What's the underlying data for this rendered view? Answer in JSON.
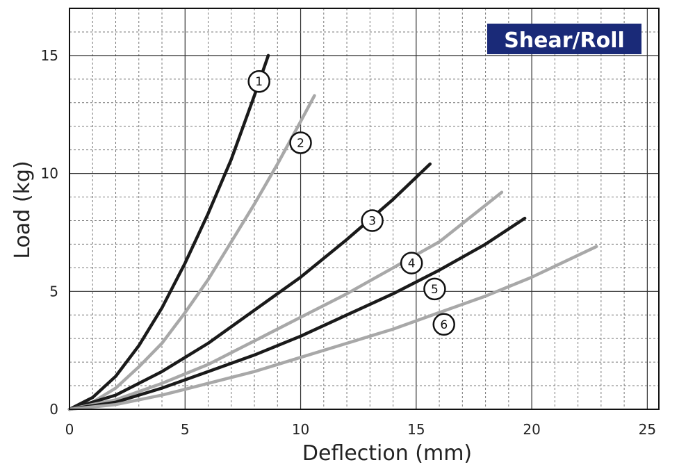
{
  "chart_data": {
    "type": "line",
    "title": "Shear/Roll",
    "xlabel": "Deflection (mm)",
    "ylabel": "Load (kg)",
    "xlim": [
      0,
      25.5
    ],
    "ylim": [
      0,
      17
    ],
    "xticks": [
      "0",
      "5",
      "10",
      "15",
      "20",
      "25"
    ],
    "yticks": [
      "0",
      "5",
      "10",
      "15"
    ],
    "grid": true,
    "series": [
      {
        "name": "1",
        "color": "#1a1a1a",
        "x": [
          0,
          1,
          2,
          3,
          4,
          5,
          6,
          7,
          8,
          8.6
        ],
        "y": [
          0,
          0.5,
          1.4,
          2.7,
          4.3,
          6.2,
          8.3,
          10.6,
          13.3,
          15.0
        ],
        "label_at": [
          8.2,
          13.9
        ]
      },
      {
        "name": "2",
        "color": "#a8a8a8",
        "x": [
          0,
          1,
          2,
          3,
          4,
          5,
          6,
          7,
          8,
          9,
          10,
          10.6
        ],
        "y": [
          0,
          0.3,
          0.9,
          1.8,
          2.8,
          4.1,
          5.5,
          7.1,
          8.7,
          10.4,
          12.2,
          13.3
        ],
        "label_at": [
          10.0,
          11.3
        ]
      },
      {
        "name": "3",
        "color": "#1a1a1a",
        "x": [
          0,
          2,
          4,
          6,
          8,
          10,
          12,
          14,
          15.6
        ],
        "y": [
          0,
          0.6,
          1.6,
          2.8,
          4.2,
          5.6,
          7.2,
          8.9,
          10.4
        ],
        "label_at": [
          13.1,
          8.0
        ]
      },
      {
        "name": "4",
        "color": "#a8a8a8",
        "x": [
          0,
          2,
          4,
          6,
          8,
          10,
          12,
          14,
          16,
          18.7
        ],
        "y": [
          0,
          0.4,
          1.1,
          1.9,
          2.9,
          3.9,
          4.9,
          6.0,
          7.1,
          9.2
        ],
        "label_at": [
          14.8,
          6.2
        ]
      },
      {
        "name": "5",
        "color": "#1a1a1a",
        "x": [
          0,
          2,
          4,
          6,
          8,
          10,
          12,
          14,
          16,
          18,
          19.7
        ],
        "y": [
          0,
          0.3,
          0.9,
          1.6,
          2.3,
          3.1,
          4.0,
          4.9,
          5.9,
          7.0,
          8.1
        ],
        "label_at": [
          15.8,
          5.1
        ]
      },
      {
        "name": "6",
        "color": "#a8a8a8",
        "x": [
          0,
          2,
          4,
          6,
          8,
          10,
          12,
          14,
          16,
          18,
          20,
          22.8
        ],
        "y": [
          0,
          0.2,
          0.6,
          1.1,
          1.6,
          2.2,
          2.8,
          3.4,
          4.1,
          4.8,
          5.6,
          6.9
        ],
        "label_at": [
          16.2,
          3.6
        ]
      }
    ]
  }
}
